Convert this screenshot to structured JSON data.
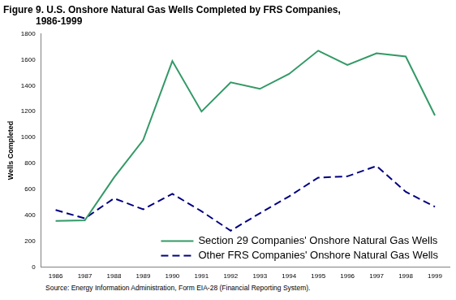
{
  "chart_data": {
    "type": "line",
    "title": "Figure 9. U.S. Onshore Natural Gas Wells Completed by FRS Companies, 1986-1999",
    "y_label": "Wells Completed",
    "annotations": [
      "Source: Energy Information Administration, Form EIA-28 (Financial Reporting System)."
    ],
    "categories": [
      "1986",
      "1987",
      "1988",
      "1989",
      "1990",
      "1991",
      "1992",
      "1993",
      "1994",
      "1995",
      "1996",
      "1997",
      "1998",
      "1999"
    ],
    "series": [
      {
        "name": "Section 29 Companies' Onshore Natural Gas Wells",
        "color": "#339966",
        "line_style": "solid",
        "marker": "none",
        "values": [
          355,
          360,
          690,
          980,
          1590,
          1200,
          1425,
          1375,
          1490,
          1670,
          1560,
          1650,
          1625,
          1170
        ]
      },
      {
        "name": "Other FRS Companies' Onshore Natural Gas Wells",
        "color": "#000080",
        "line_style": "dashed",
        "marker": "none",
        "values": [
          440,
          375,
          530,
          445,
          565,
          430,
          280,
          415,
          545,
          690,
          700,
          780,
          580,
          465
        ]
      }
    ],
    "ylim": [
      0,
      1800
    ],
    "yticks": [
      0,
      200,
      400,
      600,
      800,
      1000,
      1200,
      1400,
      1600,
      1800
    ],
    "grid": false,
    "legend": "lower right"
  }
}
